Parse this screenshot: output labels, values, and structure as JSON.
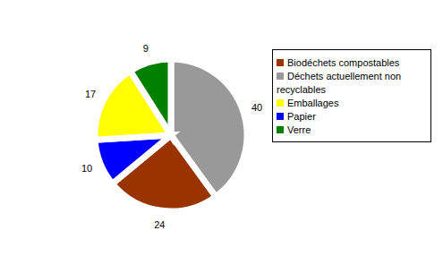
{
  "chart_data": {
    "type": "pie",
    "categories": [
      "Déchets actuellement non recyclables",
      "Biodéchets compostables",
      "Papier",
      "Emballages",
      "Verre"
    ],
    "values": [
      40,
      24,
      10,
      17,
      9
    ],
    "colors": [
      "#999999",
      "#993300",
      "#0000ff",
      "#ffff00",
      "#008000"
    ],
    "data_labels": true,
    "legend": "right"
  }
}
